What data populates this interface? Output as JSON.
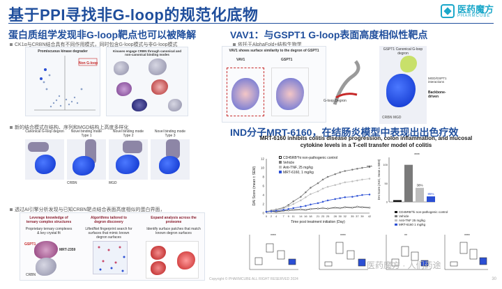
{
  "header": {
    "title": "基于PPI寻找非G-loop的规范化底物",
    "logo_main": "医药魔方",
    "logo_sub": "PHARMCUBE"
  },
  "left": {
    "heading": "蛋白质组学发现非G-loop靶点也可以被降解",
    "bullet1": "CK1α与CRBN结合具有不同作用模式，同时包含G-loop模式与非G-loop模式",
    "panel1_title": "Promiscuous kinase degrader",
    "panel1_tag": "Non G-loop",
    "panel2_title": "Kinases engage CRBN through canonical and non-canonical binding modes",
    "bullet2": "新的结合模式在结构、序列和MGD结构上高度多样化",
    "modes": [
      "Canonical G-loop degron",
      "Novel binding mode Type 1",
      "Novel binding mode Type 2",
      "Novel binding mode Type 3"
    ],
    "crbn_label": "CRBN",
    "mgd_label": "MGD",
    "bullet3": "透过AI引擎分析发现与已知CRBN靶点结合表面高度相似的蛋白界面，",
    "box1_title": "Leverage knowledge of ternary complex structures",
    "box1_text": "Proprietary ternary complexes & key crystal fit",
    "box2_title": "Algorithms tailored to degron discovery",
    "box2_text": "LiftedNet fingerprint search for surfaces that mimic known degron surfaces",
    "box3_title": "Expand analysis across the proteome",
    "box3_text": "Identify surface patches that match known degron surfaces",
    "gspt1_label": "GSPT1",
    "mrt_label": "MRT-2359",
    "crbn_small": "CRBN"
  },
  "right": {
    "heading": "VAV1：与GSPT1 G-loop表面高度相似性靶点",
    "bullet1": "依托于AlphaFold+结构生物学",
    "vav1_label": "VAV1",
    "gspt1_label": "GSPT1",
    "sim_text": "VAV1 shows surface similarity to the degron of GSPT1",
    "gloop_label": "G-loop Degron",
    "canonical_label": "GSPT1 Canonical G-loop degron",
    "novel_label": "VAV1 Novel binding mode Type 1",
    "mgd_interactions": "MGD/GSPT1 interactions",
    "backbone": "Backbone-driven",
    "mgd_vav1": "MGD:VAV1 interactions",
    "sidechain": "Side chain-driven",
    "crbn_mgd": "CRBN MGD"
  },
  "ind": {
    "heading": "IND分子MRT-6160，在结肠炎模型中表现出出色疗效",
    "chart_title": "MRT-6160 inhibits colitis disease progression, colon inflammation, and mucosal cytokine levels in a T-cell transfer model of colitis",
    "line_legend": [
      "CD45RB^hi non-pathogenic control",
      "Vehicle",
      "Anti-TNF, 25 mg/kg",
      "MRT-6160, 1 mg/kg"
    ],
    "bar_legend": [
      "CD45RB^hi non-pathogenic control",
      "Vehicle",
      "Anti-TNF 25 mg/kg",
      "MRT-6160 1 mg/kg"
    ],
    "bar_pcts": [
      "38%",
      "85%"
    ],
    "sig": "****"
  },
  "footer": {
    "copyright": "Copyright © PHARMCUBE ALL RIGHT RESERVED 2024",
    "page": "30",
    "watermark": "医药魔方 · 人们药途"
  },
  "chart_data": [
    {
      "type": "line",
      "title": "",
      "xlabel": "Time post treatment initiation (Day)",
      "ylabel": "DAI Score (mean ± SEM)",
      "x": [
        0,
        2,
        4,
        7,
        9,
        11,
        14,
        16,
        18,
        21,
        23,
        25,
        28,
        30,
        32,
        35,
        37,
        39,
        42
      ],
      "xlim": [
        0,
        42
      ],
      "ylim": [
        0,
        12
      ],
      "series": [
        {
          "name": "CD45RB^hi non-pathogenic control",
          "color": "#1a1a1a",
          "values": [
            0.3,
            0.4,
            0.3,
            0.5,
            0.6,
            0.7,
            0.8,
            0.7,
            0.9,
            1.0,
            1.1,
            1.0,
            1.2,
            1.1,
            1.3,
            1.2,
            1.4,
            1.3,
            1.2
          ]
        },
        {
          "name": "Vehicle",
          "color": "#7a7a7a",
          "values": [
            0.3,
            0.6,
            0.8,
            1.2,
            1.8,
            2.6,
            3.6,
            4.6,
            5.6,
            6.6,
            7.4,
            8.0,
            8.6,
            9.0,
            9.3,
            9.6,
            9.8,
            10.0,
            10.2
          ]
        },
        {
          "name": "Anti-TNF, 25 mg/kg",
          "color": "#bdbdbd",
          "values": [
            0.3,
            0.5,
            0.7,
            1.0,
            1.5,
            2.0,
            2.8,
            3.5,
            4.2,
            4.8,
            5.4,
            5.8,
            6.2,
            6.5,
            6.8,
            7.0,
            7.2,
            7.4,
            7.6
          ]
        },
        {
          "name": "MRT-6160, 1 mg/kg",
          "color": "#2b4fd4",
          "values": [
            0.3,
            0.4,
            0.5,
            0.7,
            0.9,
            1.1,
            1.4,
            1.6,
            1.9,
            2.2,
            2.5,
            2.8,
            3.1,
            3.3,
            3.5,
            3.6,
            3.8,
            4.0,
            4.1
          ]
        }
      ]
    },
    {
      "type": "bar",
      "ylabel": "DAI Score (AUC, mean ± SEM)",
      "categories": [
        "Control",
        "Vehicle",
        "Anti-TNF",
        "MRT-6160"
      ],
      "values": [
        5,
        100,
        38,
        15
      ],
      "ylim": [
        0,
        120
      ],
      "colors": [
        "#1a1a1a",
        "#7a7a7a",
        "#bdbdbd",
        "#2b4fd4"
      ]
    }
  ]
}
